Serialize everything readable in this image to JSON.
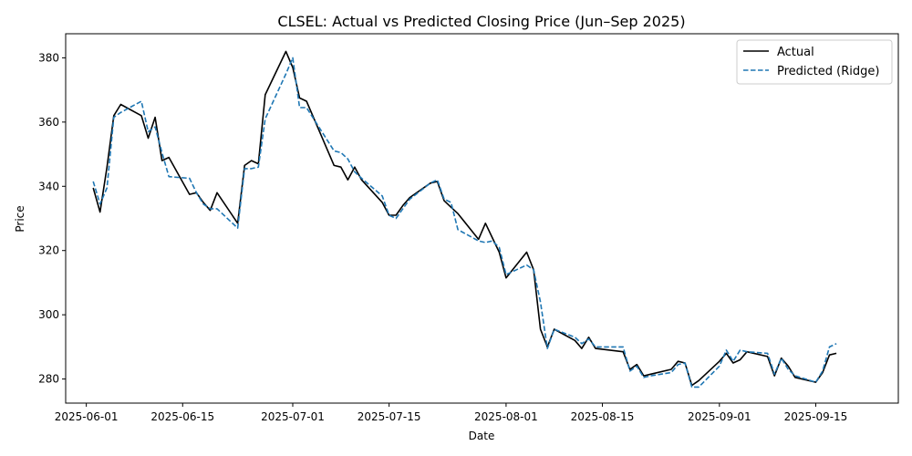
{
  "chart_data": {
    "type": "line",
    "title": "CLSEL: Actual vs Predicted Closing Price (Jun–Sep 2025)",
    "xlabel": "Date",
    "ylabel": "Price",
    "xlim": [
      "2025-05-29",
      "2025-09-27"
    ],
    "ylim": [
      272.5,
      387.5
    ],
    "x_ticks": [
      "2025-06-01",
      "2025-06-15",
      "2025-07-01",
      "2025-07-15",
      "2025-08-01",
      "2025-08-15",
      "2025-09-01",
      "2025-09-15"
    ],
    "y_ticks": [
      280,
      300,
      320,
      340,
      360,
      380
    ],
    "grid": false,
    "legend_position": "top-right",
    "series": [
      {
        "name": "Actual",
        "color": "#000000",
        "style": "solid",
        "x": [
          "2025-06-02",
          "2025-06-03",
          "2025-06-04",
          "2025-06-05",
          "2025-06-06",
          "2025-06-09",
          "2025-06-10",
          "2025-06-11",
          "2025-06-12",
          "2025-06-13",
          "2025-06-16",
          "2025-06-17",
          "2025-06-18",
          "2025-06-19",
          "2025-06-20",
          "2025-06-23",
          "2025-06-24",
          "2025-06-25",
          "2025-06-26",
          "2025-06-27",
          "2025-06-30",
          "2025-07-01",
          "2025-07-02",
          "2025-07-03",
          "2025-07-07",
          "2025-07-08",
          "2025-07-09",
          "2025-07-10",
          "2025-07-11",
          "2025-07-14",
          "2025-07-15",
          "2025-07-16",
          "2025-07-17",
          "2025-07-18",
          "2025-07-21",
          "2025-07-22",
          "2025-07-23",
          "2025-07-24",
          "2025-07-25",
          "2025-07-28",
          "2025-07-29",
          "2025-07-30",
          "2025-07-31",
          "2025-08-01",
          "2025-08-04",
          "2025-08-05",
          "2025-08-06",
          "2025-08-07",
          "2025-08-08",
          "2025-08-11",
          "2025-08-12",
          "2025-08-13",
          "2025-08-14",
          "2025-08-18",
          "2025-08-19",
          "2025-08-20",
          "2025-08-21",
          "2025-08-22",
          "2025-08-25",
          "2025-08-26",
          "2025-08-27",
          "2025-08-28",
          "2025-08-29",
          "2025-09-01",
          "2025-09-02",
          "2025-09-03",
          "2025-09-04",
          "2025-09-05",
          "2025-09-08",
          "2025-09-09",
          "2025-09-10",
          "2025-09-11",
          "2025-09-12",
          "2025-09-15",
          "2025-09-16",
          "2025-09-17",
          "2025-09-18"
        ],
        "values": [
          339.5,
          332.0,
          346.0,
          362.0,
          365.5,
          362.0,
          355.0,
          361.5,
          348.0,
          349.0,
          337.5,
          338.0,
          335.0,
          332.5,
          338.0,
          328.5,
          346.5,
          348.0,
          347.0,
          368.5,
          382.0,
          377.0,
          367.5,
          366.5,
          346.5,
          346.0,
          342.0,
          346.0,
          342.0,
          335.0,
          331.0,
          331.0,
          334.0,
          336.5,
          341.0,
          341.5,
          335.5,
          333.5,
          331.5,
          323.5,
          328.5,
          324.0,
          319.5,
          311.5,
          319.5,
          314.0,
          295.5,
          290.0,
          295.5,
          292.0,
          289.5,
          293.0,
          289.5,
          288.5,
          283.0,
          284.5,
          281.0,
          281.5,
          283.0,
          285.5,
          285.0,
          278.0,
          279.5,
          285.5,
          288.0,
          285.0,
          286.0,
          288.5,
          287.0,
          281.0,
          286.5,
          284.0,
          280.5,
          279.0,
          282.0,
          287.5,
          288.0
        ]
      },
      {
        "name": "Predicted (Ridge)",
        "color": "#1f77b4",
        "style": "dashed",
        "x": [
          "2025-06-02",
          "2025-06-03",
          "2025-06-04",
          "2025-06-05",
          "2025-06-06",
          "2025-06-09",
          "2025-06-10",
          "2025-06-11",
          "2025-06-12",
          "2025-06-13",
          "2025-06-16",
          "2025-06-17",
          "2025-06-18",
          "2025-06-19",
          "2025-06-20",
          "2025-06-23",
          "2025-06-24",
          "2025-06-25",
          "2025-06-26",
          "2025-06-27",
          "2025-06-30",
          "2025-07-01",
          "2025-07-02",
          "2025-07-03",
          "2025-07-07",
          "2025-07-08",
          "2025-07-09",
          "2025-07-10",
          "2025-07-11",
          "2025-07-14",
          "2025-07-15",
          "2025-07-16",
          "2025-07-17",
          "2025-07-18",
          "2025-07-21",
          "2025-07-22",
          "2025-07-23",
          "2025-07-24",
          "2025-07-25",
          "2025-07-28",
          "2025-07-29",
          "2025-07-30",
          "2025-07-31",
          "2025-08-01",
          "2025-08-04",
          "2025-08-05",
          "2025-08-06",
          "2025-08-07",
          "2025-08-08",
          "2025-08-11",
          "2025-08-12",
          "2025-08-13",
          "2025-08-14",
          "2025-08-18",
          "2025-08-19",
          "2025-08-20",
          "2025-08-21",
          "2025-08-22",
          "2025-08-25",
          "2025-08-26",
          "2025-08-27",
          "2025-08-28",
          "2025-08-29",
          "2025-09-01",
          "2025-09-02",
          "2025-09-03",
          "2025-09-04",
          "2025-09-05",
          "2025-09-08",
          "2025-09-09",
          "2025-09-10",
          "2025-09-11",
          "2025-09-12",
          "2025-09-15",
          "2025-09-16",
          "2025-09-17",
          "2025-09-18"
        ],
        "values": [
          341.5,
          334.5,
          339.5,
          361.5,
          363.0,
          366.5,
          357.0,
          358.5,
          350.5,
          343.0,
          342.5,
          338.0,
          334.5,
          333.0,
          333.0,
          327.0,
          345.5,
          345.5,
          346.0,
          361.0,
          375.0,
          380.0,
          364.5,
          364.5,
          351.0,
          350.5,
          348.5,
          344.5,
          342.5,
          337.0,
          331.0,
          330.0,
          333.0,
          336.0,
          341.0,
          342.0,
          336.0,
          335.0,
          326.5,
          323.0,
          322.5,
          323.0,
          321.0,
          312.5,
          315.5,
          314.0,
          304.0,
          289.5,
          295.5,
          293.0,
          291.0,
          292.5,
          290.0,
          290.0,
          282.5,
          284.0,
          280.5,
          281.0,
          282.0,
          284.5,
          285.0,
          277.5,
          277.5,
          284.0,
          289.0,
          285.5,
          289.0,
          288.5,
          288.0,
          281.5,
          286.5,
          283.0,
          281.0,
          279.0,
          282.5,
          290.0,
          291.0
        ]
      }
    ]
  }
}
